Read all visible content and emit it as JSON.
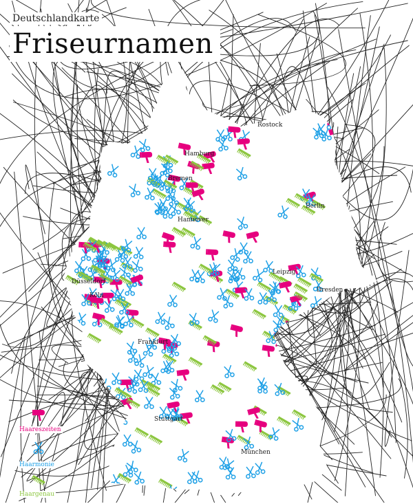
{
  "header": {
    "supertitle": "Deutschlandkarte",
    "title": "Friseurnamen"
  },
  "colors": {
    "haareszeiten": "#e6007e",
    "haarmonie": "#1ea0e6",
    "haargenau": "#8cc63f",
    "hair_lines": "#222222"
  },
  "legend": [
    {
      "label": "Haareszeiten",
      "icon": "hair-dryer-icon",
      "color": "#e6007e"
    },
    {
      "label": "Haarmonie",
      "icon": "scissors-icon",
      "color": "#1ea0e6"
    },
    {
      "label": "Haargenau",
      "icon": "comb-icon",
      "color": "#8cc63f"
    }
  ],
  "cities": [
    {
      "name": "Rostock"
    },
    {
      "name": "Hamburg"
    },
    {
      "name": "Bremen"
    },
    {
      "name": "Berlin"
    },
    {
      "name": "Hannover"
    },
    {
      "name": "Leipzig"
    },
    {
      "name": "Dresden"
    },
    {
      "name": "Düsseldorf"
    },
    {
      "name": "Köln"
    },
    {
      "name": "Frankfurt"
    },
    {
      "name": "Stuttgart"
    },
    {
      "name": "München"
    }
  ]
}
